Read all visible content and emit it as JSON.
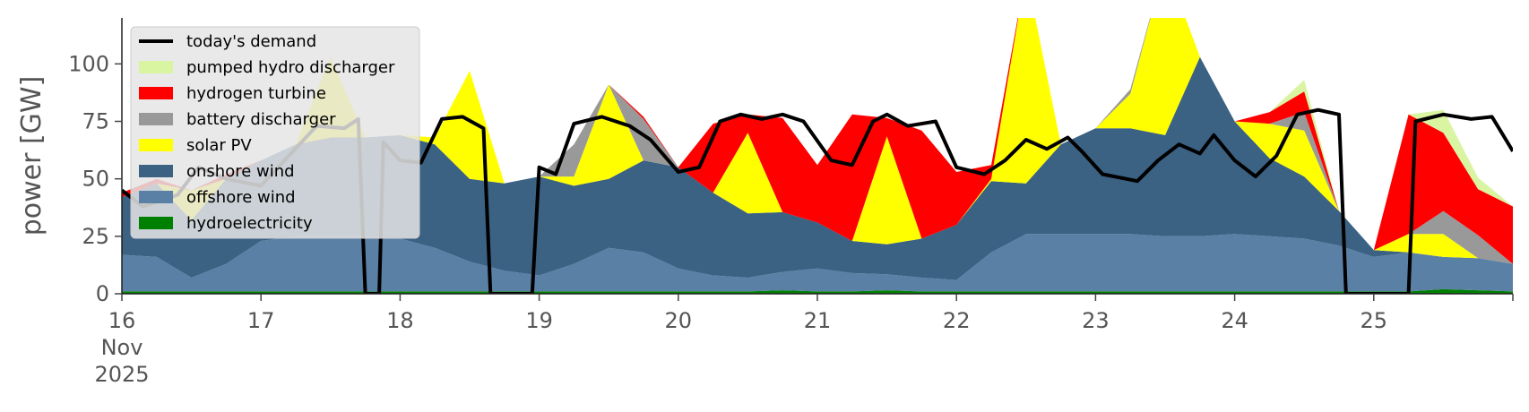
{
  "chart_data": {
    "type": "area",
    "ylabel": "power [GW]",
    "ylim": [
      0,
      120
    ],
    "yticks": [
      0,
      25,
      50,
      75,
      100
    ],
    "xlim": [
      16,
      26
    ],
    "xticks": [
      {
        "value": 16,
        "label": "16",
        "sublabels": [
          "Nov",
          "2025"
        ]
      },
      {
        "value": 17,
        "label": "17"
      },
      {
        "value": 18,
        "label": "18"
      },
      {
        "value": 19,
        "label": "19"
      },
      {
        "value": 20,
        "label": "20"
      },
      {
        "value": 21,
        "label": "21"
      },
      {
        "value": 22,
        "label": "22"
      },
      {
        "value": 23,
        "label": "23"
      },
      {
        "value": 24,
        "label": "24"
      },
      {
        "value": 25,
        "label": "25"
      }
    ],
    "legend_position": "top-left",
    "grid": false,
    "x": [
      16.0,
      16.25,
      16.5,
      16.75,
      17.0,
      17.25,
      17.5,
      17.75,
      18.0,
      18.25,
      18.5,
      18.75,
      19.0,
      19.25,
      19.5,
      19.75,
      20.0,
      20.25,
      20.5,
      20.75,
      21.0,
      21.25,
      21.5,
      21.75,
      22.0,
      22.25,
      22.5,
      22.75,
      23.0,
      23.25,
      23.5,
      23.75,
      24.0,
      24.25,
      24.5,
      24.75,
      25.0,
      25.25,
      25.5,
      25.75,
      26.0
    ],
    "stack_series": [
      {
        "name": "hydroelectricity",
        "color": "#008000",
        "values": [
          1,
          1,
          1,
          1,
          1,
          1,
          1,
          1,
          1,
          1,
          1,
          1,
          1,
          1,
          1,
          1,
          1,
          1,
          1,
          1.5,
          1,
          1,
          1.5,
          1,
          1,
          1,
          1,
          1,
          1,
          1,
          1,
          1,
          1,
          1,
          1,
          1,
          1,
          1,
          2,
          1.5,
          1
        ]
      },
      {
        "name": "offshore wind",
        "color": "#5a80a6",
        "values": [
          16,
          15,
          6,
          12,
          22,
          24,
          24,
          24,
          23,
          19,
          13,
          9,
          7,
          12,
          19,
          17,
          10,
          7,
          6,
          8,
          10,
          8,
          7,
          6,
          5,
          17,
          25,
          25,
          25,
          25,
          24,
          24,
          25,
          24,
          23,
          20,
          15,
          17,
          14,
          14,
          12
        ]
      },
      {
        "name": "onshore wind",
        "color": "#3b6183",
        "values": [
          25,
          32,
          25,
          37,
          35,
          40,
          43,
          43,
          45,
          45,
          36,
          38,
          43,
          34,
          30,
          40,
          44,
          36,
          28,
          26,
          20,
          14,
          13,
          17,
          24,
          31,
          22,
          39,
          46,
          46,
          44,
          78,
          49,
          34,
          27,
          15,
          3,
          0,
          0,
          0,
          0
        ]
      },
      {
        "name": "solar PV",
        "color": "#ffff00",
        "values": [
          0,
          0,
          13,
          0,
          0,
          0,
          35,
          0,
          0,
          3,
          47,
          0,
          0,
          4,
          41,
          0,
          0,
          0,
          35,
          0,
          0,
          0,
          47,
          0,
          0,
          1,
          92,
          0,
          0,
          15,
          75,
          0,
          0,
          15,
          20,
          0,
          0,
          8,
          10,
          0,
          0
        ]
      },
      {
        "name": "battery discharger",
        "color": "#999999",
        "values": [
          0,
          0,
          0,
          0,
          0,
          0,
          0,
          0,
          0,
          0,
          0,
          0,
          0,
          14,
          0,
          18,
          0,
          0,
          0,
          0,
          0,
          0,
          0,
          0,
          0,
          0,
          0,
          0,
          0,
          2,
          0,
          0,
          0,
          0,
          8,
          0,
          0,
          0,
          10,
          10,
          0
        ]
      },
      {
        "name": "hydrogen turbine",
        "color": "#ff0000",
        "values": [
          2,
          2,
          0,
          2,
          0,
          0,
          0,
          0,
          0,
          0,
          0,
          0,
          0,
          0,
          0,
          1,
          0,
          30,
          8,
          41,
          25,
          55,
          8,
          47,
          23,
          6,
          0,
          0,
          0,
          0,
          0,
          0,
          0,
          5,
          9,
          0,
          0,
          52,
          34,
          20,
          25
        ]
      },
      {
        "name": "pumped hydro discharger",
        "color": "#d9f5a2",
        "values": [
          0,
          0,
          0,
          0,
          0,
          0,
          0,
          0,
          0,
          0,
          0,
          0,
          0,
          0,
          0,
          0,
          0,
          0,
          0,
          0,
          0,
          0,
          0,
          0,
          0,
          0,
          0,
          0,
          0,
          0,
          0,
          0,
          0,
          0,
          5,
          0,
          0,
          0,
          10,
          5,
          0
        ]
      }
    ],
    "line_series": {
      "name": "today's demand",
      "color": "#000000",
      "points": [
        [
          16.0,
          45
        ],
        [
          16.15,
          38
        ],
        [
          16.4,
          43
        ],
        [
          16.55,
          55
        ],
        [
          16.75,
          50
        ],
        [
          17.0,
          47
        ],
        [
          17.2,
          60
        ],
        [
          17.4,
          73
        ],
        [
          17.6,
          72
        ],
        [
          17.7,
          76
        ],
        [
          17.75,
          0
        ],
        [
          17.85,
          0
        ],
        [
          17.88,
          66
        ],
        [
          18.0,
          58
        ],
        [
          18.15,
          57
        ],
        [
          18.3,
          76
        ],
        [
          18.45,
          77
        ],
        [
          18.6,
          72
        ],
        [
          18.65,
          0
        ],
        [
          18.95,
          0
        ],
        [
          19.0,
          55
        ],
        [
          19.12,
          52
        ],
        [
          19.25,
          74
        ],
        [
          19.45,
          77
        ],
        [
          19.65,
          73
        ],
        [
          19.8,
          67
        ],
        [
          20.0,
          53
        ],
        [
          20.15,
          55
        ],
        [
          20.3,
          75
        ],
        [
          20.45,
          78
        ],
        [
          20.6,
          76
        ],
        [
          20.75,
          78
        ],
        [
          20.9,
          75
        ],
        [
          21.1,
          58
        ],
        [
          21.25,
          56
        ],
        [
          21.4,
          75
        ],
        [
          21.5,
          78
        ],
        [
          21.65,
          73
        ],
        [
          21.85,
          75
        ],
        [
          22.0,
          55
        ],
        [
          22.2,
          52
        ],
        [
          22.35,
          58
        ],
        [
          22.5,
          67
        ],
        [
          22.65,
          63
        ],
        [
          22.8,
          68
        ],
        [
          22.9,
          62
        ],
        [
          23.05,
          52
        ],
        [
          23.3,
          49
        ],
        [
          23.45,
          58
        ],
        [
          23.6,
          65
        ],
        [
          23.75,
          61
        ],
        [
          23.85,
          69
        ],
        [
          24.0,
          58
        ],
        [
          24.15,
          51
        ],
        [
          24.3,
          60
        ],
        [
          24.45,
          78
        ],
        [
          24.6,
          80
        ],
        [
          24.75,
          78
        ],
        [
          24.8,
          0
        ],
        [
          25.25,
          0
        ],
        [
          25.3,
          75
        ],
        [
          25.5,
          78
        ],
        [
          25.7,
          76
        ],
        [
          25.85,
          77
        ],
        [
          26.0,
          62
        ]
      ]
    },
    "legend": [
      {
        "label": "today's demand",
        "kind": "line",
        "color": "#000000"
      },
      {
        "label": "pumped hydro discharger",
        "kind": "patch",
        "color": "#d9f5a2"
      },
      {
        "label": "hydrogen turbine",
        "kind": "patch",
        "color": "#ff0000"
      },
      {
        "label": "battery discharger",
        "kind": "patch",
        "color": "#999999"
      },
      {
        "label": "solar PV",
        "kind": "patch",
        "color": "#ffff00"
      },
      {
        "label": "onshore wind",
        "kind": "patch",
        "color": "#3b6183"
      },
      {
        "label": "offshore wind",
        "kind": "patch",
        "color": "#5a80a6"
      },
      {
        "label": "hydroelectricity",
        "kind": "patch",
        "color": "#008000"
      }
    ]
  }
}
